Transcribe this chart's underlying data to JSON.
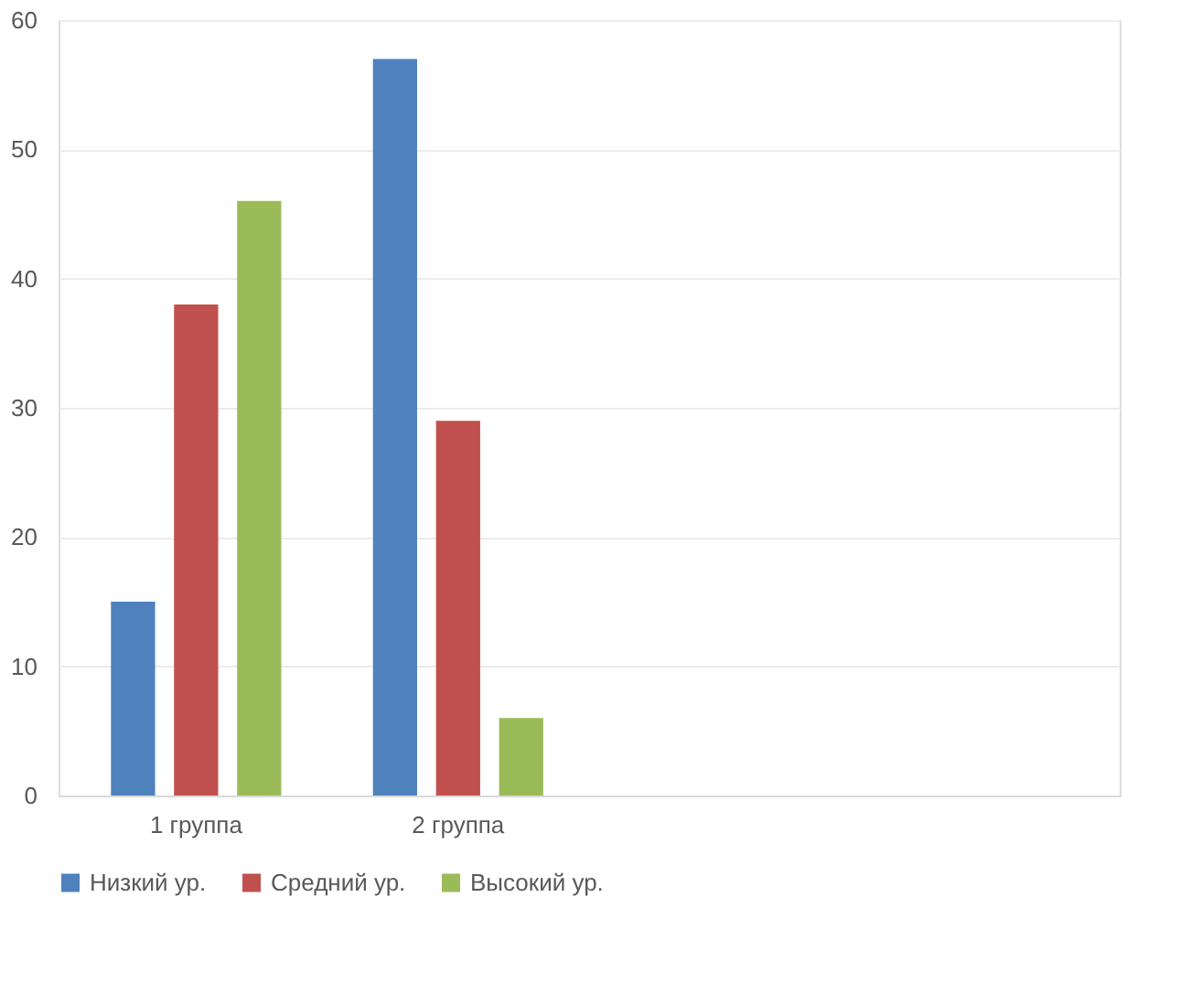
{
  "chart_data": {
    "type": "bar",
    "categories": [
      "1 группа",
      "2 группа",
      null,
      null
    ],
    "series": [
      {
        "name": "Низкий ур.",
        "color": "#4f81bd",
        "values": [
          15,
          57,
          null,
          null
        ]
      },
      {
        "name": "Средний ур.",
        "color": "#c0504d",
        "values": [
          38,
          29,
          null,
          null
        ]
      },
      {
        "name": "Высокий ур.",
        "color": "#9bbb59",
        "values": [
          46,
          6,
          null,
          null
        ]
      }
    ],
    "ylim": [
      0,
      60
    ],
    "yticks": [
      0,
      10,
      20,
      30,
      40,
      50,
      60
    ],
    "grid": "y",
    "legend": "bottom"
  }
}
